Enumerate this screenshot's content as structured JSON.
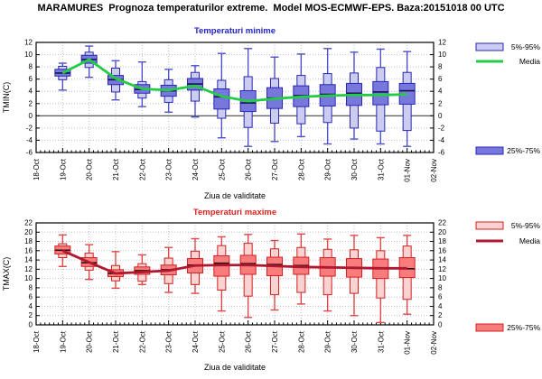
{
  "page": {
    "title": "MARAMURES  Prognoza temperaturilor extreme.  Model MOS-ECMWF-EPS. Baza:20151018 00 UTC"
  },
  "chart_data": [
    {
      "type": "boxplot",
      "title": "Temperaturi minime",
      "title_color": "#2222cc",
      "ylabel": "TMIN(C)",
      "xlabel": "Ziua de validitate",
      "ylim": [
        -6,
        12
      ],
      "ytick_step": 2,
      "grid": "dotted",
      "zero_line": true,
      "legend_position": "right",
      "categories": [
        "18-Oct",
        "19-Oct",
        "20-Oct",
        "21-Oct",
        "22-Oct",
        "23-Oct",
        "24-Oct",
        "25-Oct",
        "26-Oct",
        "27-Oct",
        "28-Oct",
        "29-Oct",
        "30-Oct",
        "31-Oct",
        "01-Nov",
        "02-Nov"
      ],
      "legend": [
        {
          "label": "5%-95%",
          "swatch": "box",
          "fill": "#ccccf0",
          "border": "#2828b4"
        },
        {
          "label": "Media",
          "swatch": "line",
          "color": "#22cc44"
        },
        {
          "label": "25%-75%",
          "swatch": "box",
          "fill": "#7878dc",
          "border": "#2828b4"
        }
      ],
      "colors": {
        "whisker": "#5050c8",
        "box_5_95_fill": "#ccccf0",
        "box_25_75_fill": "#7878dc",
        "border": "#2828b4",
        "median": "#141450",
        "media_line": "#22cc44"
      },
      "boxes": [
        {
          "date": "19-Oct",
          "min": 4.2,
          "p5": 5.9,
          "p25": 6.5,
          "median": 7.0,
          "p75": 7.6,
          "p95": 8.1,
          "max": 8.6,
          "mean": 7.0
        },
        {
          "date": "20-Oct",
          "min": 6.3,
          "p5": 7.9,
          "p25": 8.6,
          "median": 9.2,
          "p75": 9.9,
          "p95": 10.4,
          "max": 11.4,
          "mean": 9.2
        },
        {
          "date": "21-Oct",
          "min": 2.6,
          "p5": 3.9,
          "p25": 5.1,
          "median": 5.9,
          "p75": 6.6,
          "p95": 7.8,
          "max": 9.0,
          "mean": 6.1
        },
        {
          "date": "22-Oct",
          "min": 1.5,
          "p5": 2.9,
          "p25": 3.7,
          "median": 4.3,
          "p75": 5.1,
          "p95": 5.6,
          "max": 8.8,
          "mean": 4.4
        },
        {
          "date": "23-Oct",
          "min": 0.6,
          "p5": 2.2,
          "p25": 3.2,
          "median": 4.1,
          "p75": 5.0,
          "p95": 5.9,
          "max": 7.6,
          "mean": 4.2
        },
        {
          "date": "24-Oct",
          "min": -0.2,
          "p5": 2.4,
          "p25": 4.2,
          "median": 5.2,
          "p75": 6.1,
          "p95": 7.1,
          "max": 8.2,
          "mean": 4.9
        },
        {
          "date": "25-Oct",
          "min": -3.6,
          "p5": -0.4,
          "p25": 1.1,
          "median": 3.1,
          "p75": 4.4,
          "p95": 5.8,
          "max": 10.2,
          "mean": 3.2
        },
        {
          "date": "26-Oct",
          "min": -5.0,
          "p5": -1.9,
          "p25": 0.7,
          "median": 2.1,
          "p75": 4.1,
          "p95": 6.4,
          "max": 11.0,
          "mean": 2.4
        },
        {
          "date": "27-Oct",
          "min": -4.2,
          "p5": -1.2,
          "p25": 1.2,
          "median": 2.9,
          "p75": 4.6,
          "p95": 6.1,
          "max": 9.6,
          "mean": 2.8
        },
        {
          "date": "28-Oct",
          "min": -3.4,
          "p5": -1.3,
          "p25": 1.5,
          "median": 3.3,
          "p75": 4.9,
          "p95": 6.6,
          "max": 10.1,
          "mean": 3.1
        },
        {
          "date": "29-Oct",
          "min": -4.6,
          "p5": -1.1,
          "p25": 1.6,
          "median": 3.5,
          "p75": 5.1,
          "p95": 6.9,
          "max": 11.0,
          "mean": 3.3
        },
        {
          "date": "30-Oct",
          "min": -3.8,
          "p5": -2.0,
          "p25": 1.7,
          "median": 3.7,
          "p75": 5.3,
          "p95": 7.0,
          "max": 10.4,
          "mean": 3.4
        },
        {
          "date": "31-Oct",
          "min": -4.6,
          "p5": -2.5,
          "p25": 1.8,
          "median": 3.9,
          "p75": 5.6,
          "p95": 7.9,
          "max": 10.9,
          "mean": 3.4
        },
        {
          "date": "01-Nov",
          "min": -5.0,
          "p5": -2.4,
          "p25": 1.9,
          "median": 4.1,
          "p75": 5.3,
          "p95": 7.1,
          "max": 10.5,
          "mean": 3.5
        }
      ]
    },
    {
      "type": "boxplot",
      "title": "Temperaturi maxime",
      "title_color": "#dd2222",
      "ylabel": "TMAX(C)",
      "xlabel": "Ziua de validitate",
      "ylim": [
        0,
        22
      ],
      "ytick_step": 2,
      "grid": "dotted",
      "zero_line": false,
      "legend_position": "right",
      "categories": [
        "18-Oct",
        "19-Oct",
        "20-Oct",
        "21-Oct",
        "22-Oct",
        "23-Oct",
        "24-Oct",
        "25-Oct",
        "26-Oct",
        "27-Oct",
        "28-Oct",
        "29-Oct",
        "30-Oct",
        "31-Oct",
        "01-Nov",
        "02-Nov"
      ],
      "legend": [
        {
          "label": "5%-95%",
          "swatch": "box",
          "fill": "#fbd2d2",
          "border": "#d42020"
        },
        {
          "label": "Media",
          "swatch": "line",
          "color": "#b01830"
        },
        {
          "label": "25%-75%",
          "swatch": "box",
          "fill": "#f87c7c",
          "border": "#d42020"
        }
      ],
      "colors": {
        "whisker": "#e04848",
        "box_5_95_fill": "#fbd2d2",
        "box_25_75_fill": "#f87c7c",
        "border": "#d42020",
        "median": "#301010",
        "media_line": "#b01830"
      },
      "boxes": [
        {
          "date": "19-Oct",
          "min": 12.6,
          "p5": 14.5,
          "p25": 15.3,
          "median": 16.1,
          "p75": 17.0,
          "p95": 17.5,
          "max": 19.4,
          "mean": 16.0
        },
        {
          "date": "20-Oct",
          "min": 9.8,
          "p5": 11.8,
          "p25": 12.6,
          "median": 13.4,
          "p75": 14.5,
          "p95": 15.5,
          "max": 17.3,
          "mean": 13.5
        },
        {
          "date": "21-Oct",
          "min": 7.9,
          "p5": 9.5,
          "p25": 10.4,
          "median": 11.1,
          "p75": 11.9,
          "p95": 12.8,
          "max": 15.8,
          "mean": 11.1
        },
        {
          "date": "22-Oct",
          "min": 8.7,
          "p5": 9.4,
          "p25": 10.9,
          "median": 11.7,
          "p75": 12.5,
          "p95": 13.2,
          "max": 15.1,
          "mean": 11.4
        },
        {
          "date": "23-Oct",
          "min": 7.0,
          "p5": 8.9,
          "p25": 10.8,
          "median": 11.9,
          "p75": 12.9,
          "p95": 14.4,
          "max": 16.7,
          "mean": 11.7
        },
        {
          "date": "24-Oct",
          "min": 6.8,
          "p5": 8.7,
          "p25": 11.2,
          "median": 12.9,
          "p75": 14.3,
          "p95": 15.9,
          "max": 18.6,
          "mean": 12.8
        },
        {
          "date": "25-Oct",
          "min": 3.0,
          "p5": 7.5,
          "p25": 10.5,
          "median": 13.3,
          "p75": 14.9,
          "p95": 17.1,
          "max": 19.0,
          "mean": 12.9
        },
        {
          "date": "26-Oct",
          "min": 1.6,
          "p5": 6.2,
          "p25": 10.9,
          "median": 13.2,
          "p75": 15.0,
          "p95": 17.6,
          "max": 19.5,
          "mean": 12.9
        },
        {
          "date": "27-Oct",
          "min": 3.2,
          "p5": 6.5,
          "p25": 10.6,
          "median": 13.0,
          "p75": 14.6,
          "p95": 16.4,
          "max": 18.2,
          "mean": 12.7
        },
        {
          "date": "28-Oct",
          "min": 4.5,
          "p5": 7.0,
          "p25": 10.9,
          "median": 12.8,
          "p75": 14.6,
          "p95": 16.7,
          "max": 19.6,
          "mean": 12.5
        },
        {
          "date": "29-Oct",
          "min": 3.0,
          "p5": 6.5,
          "p25": 10.5,
          "median": 12.5,
          "p75": 14.5,
          "p95": 16.3,
          "max": 18.5,
          "mean": 12.4
        },
        {
          "date": "30-Oct",
          "min": 2.0,
          "p5": 6.8,
          "p25": 10.3,
          "median": 12.4,
          "p75": 14.3,
          "p95": 16.2,
          "max": 19.3,
          "mean": 12.3
        },
        {
          "date": "31-Oct",
          "min": 0.5,
          "p5": 5.8,
          "p25": 10.0,
          "median": 12.2,
          "p75": 14.2,
          "p95": 16.0,
          "max": 18.8,
          "mean": 12.2
        },
        {
          "date": "01-Nov",
          "min": 2.3,
          "p5": 5.5,
          "p25": 10.2,
          "median": 12.1,
          "p75": 14.5,
          "p95": 17.0,
          "max": 19.3,
          "mean": 12.2
        }
      ]
    }
  ]
}
